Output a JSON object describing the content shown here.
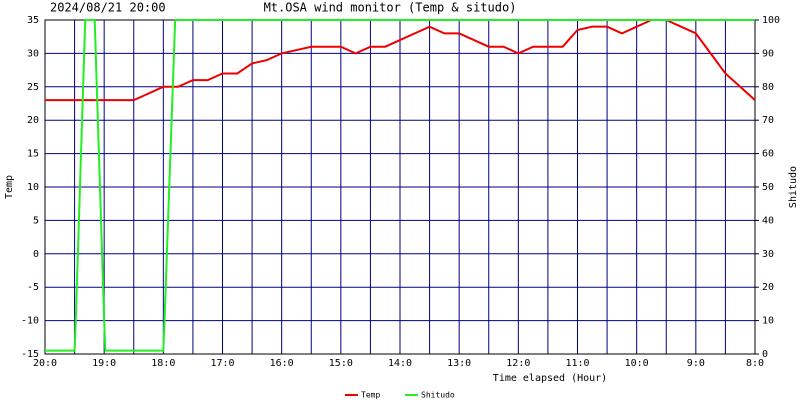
{
  "chart_data": {
    "type": "line",
    "title": "Mt.OSA wind monitor (Temp & situdo)",
    "timestamp": "2024/08/21 20:00",
    "x_label": "Time elapsed (Hour)",
    "y_label": "Temp",
    "y2_label": "Shitudo",
    "xlim": [
      0,
      12
    ],
    "xticks": [
      {
        "value": 0,
        "label": "20:0"
      },
      {
        "value": 1,
        "label": "19:0"
      },
      {
        "value": 2,
        "label": "18:0"
      },
      {
        "value": 3,
        "label": "17:0"
      },
      {
        "value": 4,
        "label": "16:0"
      },
      {
        "value": 5,
        "label": "15:0"
      },
      {
        "value": 6,
        "label": "14:0"
      },
      {
        "value": 7,
        "label": "13:0"
      },
      {
        "value": 8,
        "label": "12:0"
      },
      {
        "value": 9,
        "label": "11:0"
      },
      {
        "value": 10,
        "label": "10:0"
      },
      {
        "value": 11,
        "label": "9:0"
      },
      {
        "value": 12,
        "label": "8:0"
      }
    ],
    "x_minor_ticks": [
      0.5,
      1.5,
      2.5,
      3.5,
      4.5,
      5.5,
      6.5,
      7.5,
      8.5,
      9.5,
      10.5,
      11.5
    ],
    "ylim": [
      -15,
      35
    ],
    "yticks": [
      -15,
      -10,
      -5,
      0,
      5,
      10,
      15,
      20,
      25,
      30,
      35
    ],
    "y2lim": [
      0,
      100
    ],
    "y2ticks": [
      0,
      10,
      20,
      30,
      40,
      50,
      60,
      70,
      80,
      90,
      100
    ],
    "grid": true,
    "grid_color": "#000080",
    "series": [
      {
        "name": "Temp",
        "color": "#ee0000",
        "x": [
          0,
          0.25,
          0.5,
          0.75,
          1,
          1.25,
          1.5,
          1.75,
          2,
          2.25,
          2.5,
          2.75,
          3,
          3.25,
          3.5,
          3.75,
          4,
          4.25,
          4.5,
          4.75,
          5,
          5.25,
          5.5,
          5.75,
          6,
          6.25,
          6.5,
          6.75,
          7,
          7.25,
          7.5,
          7.75,
          8,
          8.25,
          8.5,
          8.75,
          9,
          9.25,
          9.5,
          9.75,
          10,
          10.25,
          10.5,
          10.75,
          11,
          11.25,
          11.5,
          11.75,
          12
        ],
        "values": [
          23,
          23,
          23,
          23,
          23,
          23,
          23,
          24,
          25,
          25,
          26,
          26,
          27,
          27,
          28.5,
          29,
          30,
          30.5,
          31,
          31,
          31,
          30,
          31,
          31,
          32,
          33,
          34,
          33,
          33,
          32,
          31,
          31,
          30,
          31,
          31,
          31,
          33.5,
          34,
          34,
          33,
          34,
          35,
          35,
          34,
          33,
          30,
          27,
          25,
          23
        ]
      },
      {
        "name": "Shitudo",
        "color": "#22ee22",
        "axis": "y2",
        "x": [
          0,
          0.5,
          0.52,
          0.68,
          0.84,
          1.0,
          1.02,
          2.0,
          2.02,
          2.2,
          12
        ],
        "values": [
          1,
          1,
          10,
          100,
          100,
          10,
          1,
          1,
          10,
          100,
          100
        ]
      }
    ]
  }
}
